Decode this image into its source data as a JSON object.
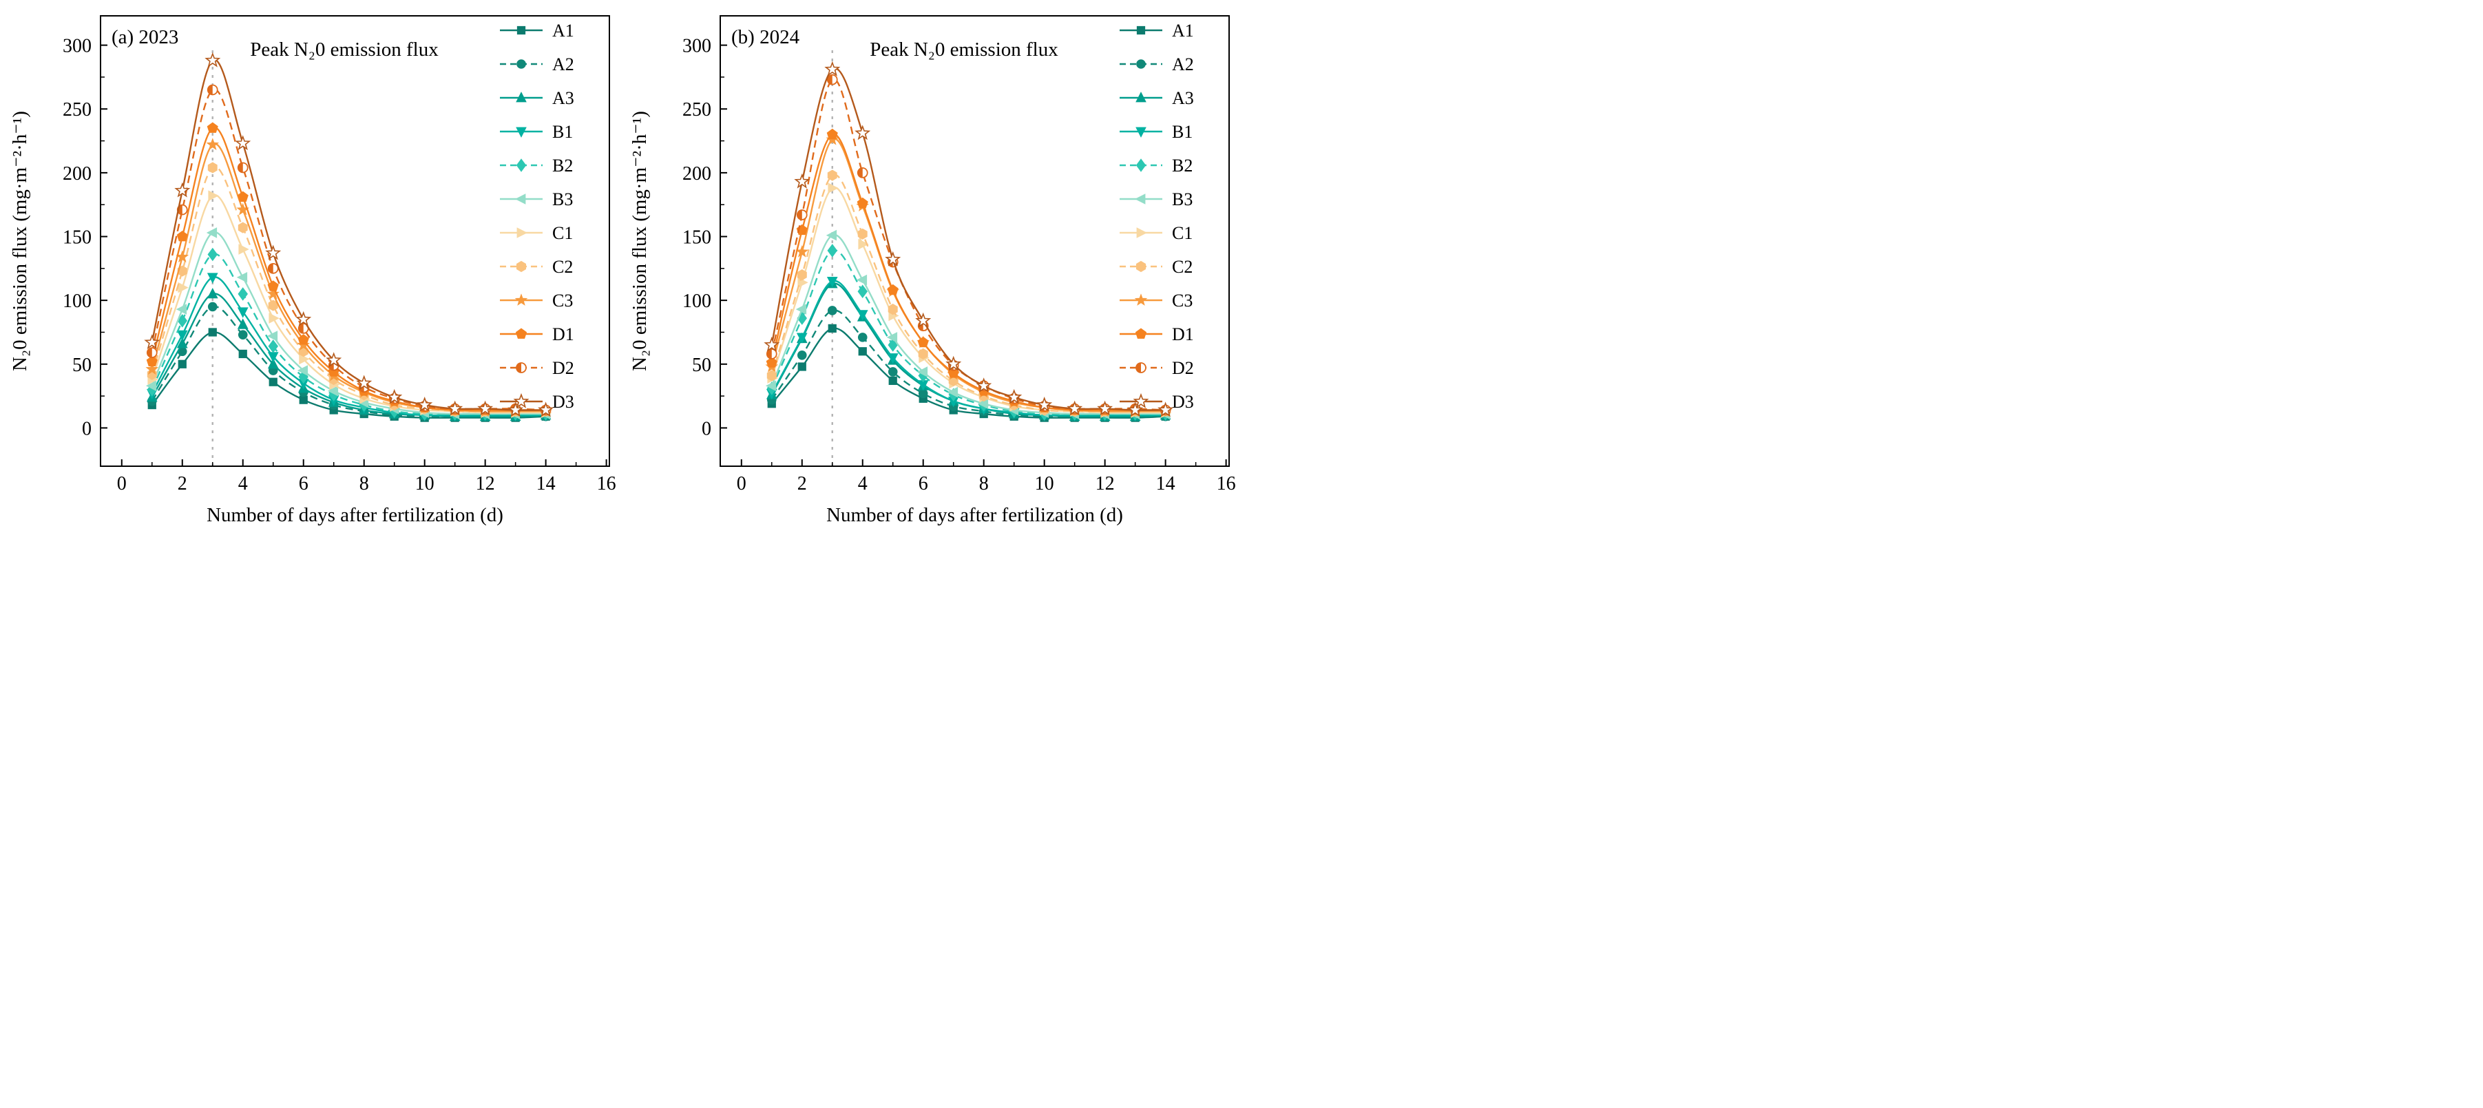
{
  "chart_data": [
    {
      "type": "line",
      "panel_label": "(a) 2023",
      "annotation": "Peak N₂0 emission flux",
      "xlabel": "Number of days after fertilization (d)",
      "ylabel": "N₂0 emission flux (mg·m⁻²·h⁻¹)",
      "xlim": [
        -0.7,
        16.1
      ],
      "ylim": [
        -30,
        323
      ],
      "xticks": [
        0,
        2,
        4,
        6,
        8,
        10,
        12,
        14,
        16
      ],
      "yticks": [
        0,
        50,
        100,
        150,
        200,
        250,
        300
      ],
      "x": [
        1,
        2,
        3,
        4,
        5,
        6,
        7,
        8,
        9,
        10,
        11,
        12,
        13,
        14
      ],
      "peak_line_x": 3,
      "legend_position": "top-right",
      "grid": false,
      "peak_line_color": "#b3b3b3",
      "series": [
        {
          "name": "A1",
          "color": "#0c7b6e",
          "line": "solid",
          "marker": "square",
          "values": [
            18,
            50,
            75,
            58,
            36,
            22,
            14,
            11,
            9,
            8,
            8,
            8,
            8,
            9
          ]
        },
        {
          "name": "A2",
          "color": "#108878",
          "line": "dashed",
          "marker": "circle",
          "values": [
            21,
            60,
            95,
            73,
            45,
            28,
            18,
            13,
            10,
            9,
            9,
            9,
            9,
            9
          ]
        },
        {
          "name": "A3",
          "color": "#009e8d",
          "line": "solid",
          "marker": "triangle-up",
          "values": [
            24,
            66,
            105,
            81,
            50,
            31,
            20,
            14,
            11,
            10,
            9,
            9,
            9,
            10
          ]
        },
        {
          "name": "B1",
          "color": "#00b2a2",
          "line": "solid",
          "marker": "triangle-down",
          "values": [
            27,
            73,
            118,
            91,
            56,
            35,
            22,
            16,
            12,
            10,
            10,
            10,
            10,
            10
          ]
        },
        {
          "name": "B2",
          "color": "#2cc7b2",
          "line": "dashed",
          "marker": "diamond",
          "values": [
            30,
            84,
            136,
            105,
            64,
            40,
            26,
            18,
            13,
            11,
            11,
            11,
            11,
            11
          ]
        },
        {
          "name": "B3",
          "color": "#93ddc8",
          "line": "solid",
          "marker": "triangle-left",
          "values": [
            33,
            93,
            153,
            118,
            72,
            45,
            29,
            20,
            15,
            12,
            11,
            11,
            11,
            11
          ]
        },
        {
          "name": "C1",
          "color": "#f8d8a2",
          "line": "solid",
          "marker": "triangle-right",
          "values": [
            38,
            110,
            182,
            140,
            86,
            54,
            34,
            23,
            17,
            14,
            13,
            12,
            12,
            12
          ]
        },
        {
          "name": "C2",
          "color": "#fac27e",
          "line": "dashed",
          "marker": "hexagon",
          "values": [
            42,
            123,
            204,
            157,
            96,
            60,
            38,
            26,
            18,
            15,
            13,
            13,
            13,
            13
          ]
        },
        {
          "name": "C3",
          "color": "#f79a3d",
          "line": "solid",
          "marker": "star",
          "values": [
            46,
            134,
            222,
            171,
            105,
            65,
            41,
            28,
            20,
            16,
            14,
            13,
            13,
            13
          ]
        },
        {
          "name": "D1",
          "color": "#f5821f",
          "line": "solid",
          "marker": "pentagon",
          "values": [
            52,
            150,
            235,
            181,
            111,
            69,
            44,
            29,
            21,
            16,
            14,
            14,
            14,
            14
          ]
        },
        {
          "name": "D2",
          "color": "#e06a1b",
          "line": "dashed",
          "marker": "circle-half",
          "values": [
            59,
            171,
            265,
            204,
            125,
            78,
            49,
            32,
            23,
            17,
            15,
            15,
            15,
            14
          ]
        },
        {
          "name": "D3",
          "color": "#b4591b",
          "line": "solid",
          "marker": "star-open",
          "values": [
            67,
            186,
            288,
            223,
            137,
            85,
            53,
            35,
            24,
            18,
            15,
            15,
            14,
            14
          ]
        }
      ]
    },
    {
      "type": "line",
      "panel_label": "(b) 2024",
      "annotation": "Peak N₂0 emission flux",
      "xlabel": "Number of days after fertilization (d)",
      "ylabel": "N₂0 emission flux (mg·m⁻²·h⁻¹)",
      "xlim": [
        -0.7,
        16.1
      ],
      "ylim": [
        -30,
        323
      ],
      "xticks": [
        0,
        2,
        4,
        6,
        8,
        10,
        12,
        14,
        16
      ],
      "yticks": [
        0,
        50,
        100,
        150,
        200,
        250,
        300
      ],
      "x": [
        1,
        2,
        3,
        4,
        5,
        6,
        7,
        8,
        9,
        10,
        11,
        12,
        13,
        14
      ],
      "peak_line_x": 3,
      "legend_position": "top-right",
      "grid": false,
      "peak_line_color": "#b3b3b3",
      "series": [
        {
          "name": "A1",
          "color": "#0c7b6e",
          "line": "solid",
          "marker": "square",
          "values": [
            19,
            48,
            78,
            60,
            37,
            23,
            14,
            11,
            9,
            8,
            8,
            8,
            8,
            9
          ]
        },
        {
          "name": "A2",
          "color": "#108878",
          "line": "dashed",
          "marker": "circle",
          "values": [
            22,
            57,
            92,
            71,
            44,
            27,
            17,
            13,
            10,
            9,
            9,
            9,
            9,
            9
          ]
        },
        {
          "name": "A3",
          "color": "#009e8d",
          "line": "solid",
          "marker": "triangle-up",
          "values": [
            26,
            70,
            113,
            87,
            53,
            33,
            21,
            15,
            11,
            10,
            9,
            9,
            9,
            10
          ]
        },
        {
          "name": "B1",
          "color": "#00b2a2",
          "line": "solid",
          "marker": "triangle-down",
          "values": [
            27,
            71,
            115,
            89,
            55,
            34,
            21,
            15,
            12,
            10,
            10,
            10,
            10,
            10
          ]
        },
        {
          "name": "B2",
          "color": "#2cc7b2",
          "line": "dashed",
          "marker": "diamond",
          "values": [
            31,
            86,
            139,
            107,
            65,
            41,
            26,
            18,
            13,
            11,
            11,
            11,
            11,
            11
          ]
        },
        {
          "name": "B3",
          "color": "#93ddc8",
          "line": "solid",
          "marker": "triangle-left",
          "values": [
            33,
            93,
            151,
            116,
            71,
            44,
            28,
            19,
            14,
            12,
            11,
            11,
            11,
            11
          ]
        },
        {
          "name": "C1",
          "color": "#f8d8a2",
          "line": "solid",
          "marker": "triangle-right",
          "values": [
            39,
            114,
            188,
            144,
            88,
            55,
            35,
            24,
            17,
            14,
            13,
            12,
            12,
            12
          ]
        },
        {
          "name": "C2",
          "color": "#fac27e",
          "line": "dashed",
          "marker": "hexagon",
          "values": [
            41,
            120,
            198,
            152,
            93,
            58,
            37,
            25,
            18,
            14,
            13,
            13,
            13,
            13
          ]
        },
        {
          "name": "C3",
          "color": "#f79a3d",
          "line": "solid",
          "marker": "star",
          "values": [
            48,
            138,
            226,
            174,
            107,
            67,
            42,
            28,
            20,
            16,
            14,
            13,
            13,
            13
          ]
        },
        {
          "name": "D1",
          "color": "#f5821f",
          "line": "solid",
          "marker": "pentagon",
          "values": [
            51,
            155,
            230,
            176,
            108,
            67,
            43,
            29,
            21,
            16,
            14,
            14,
            14,
            14
          ]
        },
        {
          "name": "D2",
          "color": "#e06a1b",
          "line": "dashed",
          "marker": "circle-half",
          "values": [
            58,
            167,
            273,
            200,
            130,
            80,
            49,
            33,
            23,
            17,
            15,
            15,
            15,
            14
          ]
        },
        {
          "name": "D3",
          "color": "#b4591b",
          "line": "solid",
          "marker": "star-open",
          "values": [
            65,
            193,
            281,
            231,
            132,
            84,
            50,
            33,
            24,
            18,
            15,
            15,
            14,
            14
          ]
        }
      ]
    }
  ]
}
